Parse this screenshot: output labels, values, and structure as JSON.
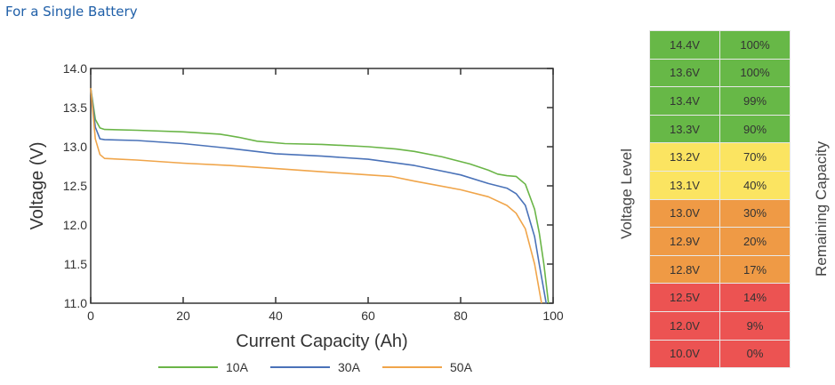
{
  "title": "For a Single Battery",
  "chart_data": {
    "type": "line",
    "xlabel": "Current Capacity (Ah)",
    "ylabel": "Voltage (V)",
    "xlim": [
      0,
      100
    ],
    "ylim": [
      11.0,
      14.0
    ],
    "xticks": [
      "0",
      "20",
      "40",
      "60",
      "80",
      "100"
    ],
    "yticks": [
      "11.0",
      "11.5",
      "12.0",
      "12.5",
      "13.0",
      "13.5",
      "14.0"
    ],
    "grid": false,
    "legend": "bottom",
    "series": [
      {
        "name": "10A",
        "color": "#6ab547",
        "x": [
          0,
          1,
          2,
          3,
          10,
          20,
          28,
          32,
          36,
          42,
          50,
          60,
          66,
          70,
          76,
          82,
          86,
          88,
          90,
          92,
          94,
          96,
          97,
          98,
          99
        ],
        "y": [
          13.75,
          13.35,
          13.24,
          13.22,
          13.21,
          13.19,
          13.16,
          13.12,
          13.07,
          13.04,
          13.03,
          13.0,
          12.97,
          12.94,
          12.87,
          12.78,
          12.7,
          12.65,
          12.63,
          12.62,
          12.52,
          12.2,
          11.9,
          11.5,
          11.0
        ]
      },
      {
        "name": "30A",
        "color": "#4a72b8",
        "x": [
          0,
          1,
          2,
          3,
          10,
          20,
          30,
          40,
          50,
          60,
          70,
          80,
          86,
          90,
          92,
          94,
          96,
          97,
          98.5
        ],
        "y": [
          13.75,
          13.25,
          13.1,
          13.09,
          13.08,
          13.04,
          12.98,
          12.91,
          12.88,
          12.84,
          12.76,
          12.64,
          12.53,
          12.47,
          12.4,
          12.25,
          11.85,
          11.5,
          11.0
        ]
      },
      {
        "name": "50A",
        "color": "#f0a54a",
        "x": [
          0,
          1,
          2,
          3,
          10,
          20,
          30,
          40,
          50,
          60,
          65,
          70,
          80,
          86,
          90,
          92,
          94,
          96,
          97.5
        ],
        "y": [
          13.75,
          13.1,
          12.9,
          12.85,
          12.83,
          12.79,
          12.76,
          12.72,
          12.68,
          12.64,
          12.62,
          12.56,
          12.45,
          12.36,
          12.25,
          12.15,
          11.95,
          11.5,
          11.0
        ]
      }
    ]
  },
  "table": {
    "left_label": "Voltage Level",
    "right_label": "Remaining Capacity",
    "rows": [
      {
        "voltage": "14.4V",
        "capacity": "100%",
        "color": "#67b847"
      },
      {
        "voltage": "13.6V",
        "capacity": "100%",
        "color": "#67b847"
      },
      {
        "voltage": "13.4V",
        "capacity": "99%",
        "color": "#67b847"
      },
      {
        "voltage": "13.3V",
        "capacity": "90%",
        "color": "#67b847"
      },
      {
        "voltage": "13.2V",
        "capacity": "70%",
        "color": "#fbe461"
      },
      {
        "voltage": "13.1V",
        "capacity": "40%",
        "color": "#fbe461"
      },
      {
        "voltage": "13.0V",
        "capacity": "30%",
        "color": "#ef9a45"
      },
      {
        "voltage": "12.9V",
        "capacity": "20%",
        "color": "#ef9a45"
      },
      {
        "voltage": "12.8V",
        "capacity": "17%",
        "color": "#ef9a45"
      },
      {
        "voltage": "12.5V",
        "capacity": "14%",
        "color": "#ec5352"
      },
      {
        "voltage": "12.0V",
        "capacity": "9%",
        "color": "#ec5352"
      },
      {
        "voltage": "10.0V",
        "capacity": "0%",
        "color": "#ec5352"
      }
    ]
  }
}
